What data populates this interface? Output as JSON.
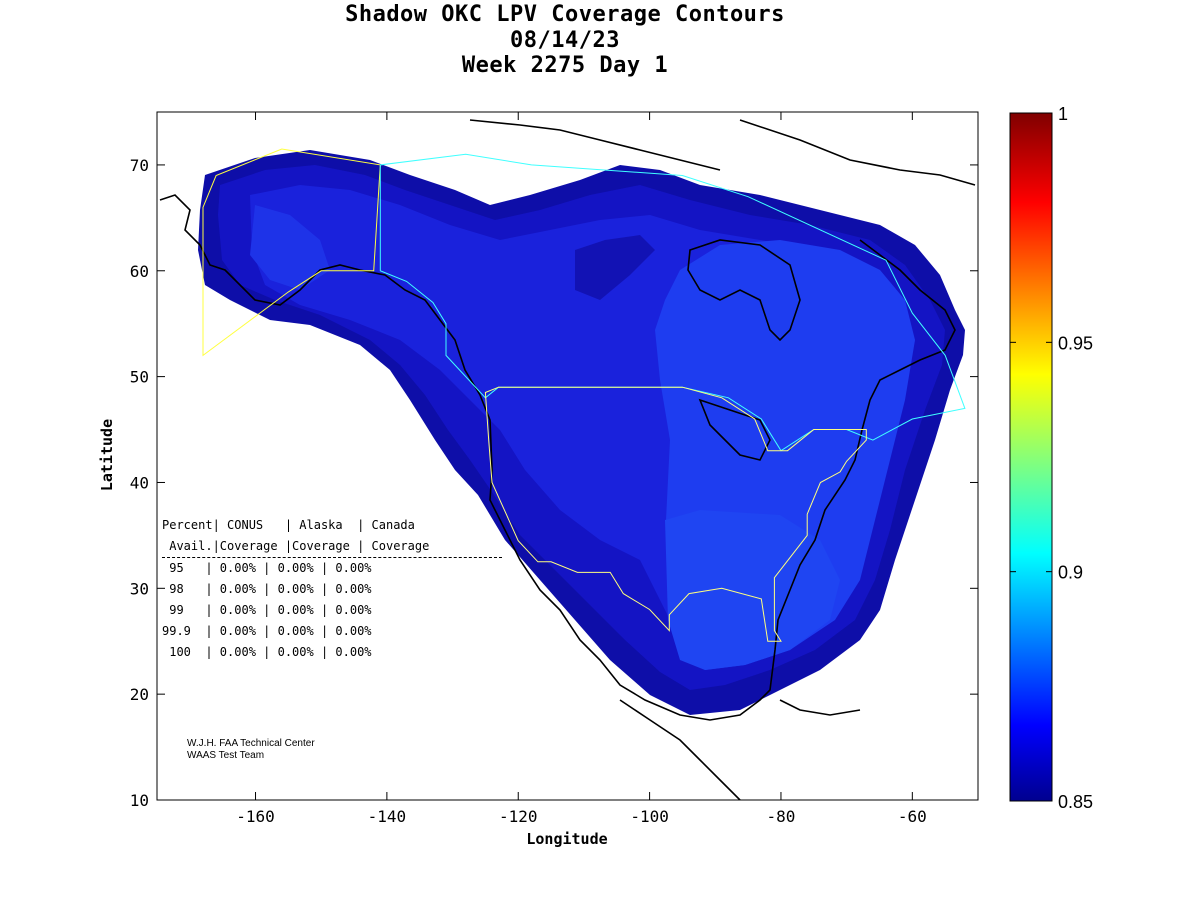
{
  "title": {
    "line1": "Shadow OKC LPV Coverage Contours",
    "line2": "08/14/23",
    "line3": "Week 2275 Day 1"
  },
  "axes": {
    "xlabel": "Longitude",
    "ylabel": "Latitude",
    "x_ticks": [
      -160,
      -140,
      -120,
      -100,
      -80,
      -60
    ],
    "y_ticks": [
      10,
      20,
      30,
      40,
      50,
      60,
      70
    ],
    "x_tick_labels": [
      "-160",
      "-140",
      "-120",
      "-100",
      "-80",
      "-60"
    ],
    "y_tick_labels": [
      "10",
      "20",
      "30",
      "40",
      "50",
      "60",
      "70"
    ],
    "xlim": [
      -175,
      -50
    ],
    "ylim": [
      10,
      75
    ]
  },
  "colorbar": {
    "range": [
      0.85,
      1.0
    ],
    "tick_labels": [
      "1",
      "0.95",
      "0.9",
      "0.85"
    ],
    "tick_values": [
      1.0,
      0.95,
      0.9,
      0.85
    ]
  },
  "stats_table": {
    "header1": "Percent| CONUS   | Alaska  | Canada",
    "header2": " Avail.|Coverage |Coverage | Coverage",
    "rows": [
      {
        "pct": "95",
        "conus": "0.00%",
        "alaska": "0.00%",
        "canada": "0.00%"
      },
      {
        "pct": "98",
        "conus": "0.00%",
        "alaska": "0.00%",
        "canada": "0.00%"
      },
      {
        "pct": "99",
        "conus": "0.00%",
        "alaska": "0.00%",
        "canada": "0.00%"
      },
      {
        "pct": "99.9",
        "conus": "0.00%",
        "alaska": "0.00%",
        "canada": "0.00%"
      },
      {
        "pct": "100",
        "conus": "0.00%",
        "alaska": "0.00%",
        "canada": "0.00%"
      }
    ]
  },
  "credit": {
    "line1": "W.J.H. FAA Technical Center",
    "line2": "WAAS Test Team"
  },
  "colors": {
    "coverage_dark": "#1515c8",
    "coverage_mid": "#1a2ee6",
    "coverage_light": "#1f4ff2",
    "coverage_edge": "#0c0c9a",
    "alaska_boundary": "#ffff40",
    "canada_boundary": "#40ffff",
    "conus_boundary": "#ffff80"
  },
  "region_boundaries": {
    "alaska": [
      [
        -168,
        52
      ],
      [
        -155,
        58
      ],
      [
        -150,
        60
      ],
      [
        -142,
        60
      ],
      [
        -141,
        70
      ],
      [
        -156,
        71.5
      ],
      [
        -166,
        69
      ],
      [
        -168,
        66
      ],
      [
        -168,
        52
      ]
    ],
    "canada": [
      [
        -141,
        70
      ],
      [
        -128,
        71
      ],
      [
        -118,
        70
      ],
      [
        -95,
        69
      ],
      [
        -85,
        67
      ],
      [
        -64,
        61
      ],
      [
        -60,
        56
      ],
      [
        -55,
        52
      ],
      [
        -52,
        47
      ],
      [
        -60,
        46
      ],
      [
        -66,
        44
      ],
      [
        -70,
        45
      ],
      [
        -75,
        45
      ],
      [
        -80,
        43
      ],
      [
        -83,
        46
      ],
      [
        -88,
        48
      ],
      [
        -95,
        49
      ],
      [
        -123,
        49
      ],
      [
        -125,
        48
      ],
      [
        -131,
        52
      ],
      [
        -131,
        55
      ],
      [
        -133,
        57
      ],
      [
        -137,
        59
      ],
      [
        -141,
        60
      ],
      [
        -141,
        70
      ]
    ],
    "conus": [
      [
        -125,
        48.5
      ],
      [
        -123,
        49
      ],
      [
        -95,
        49
      ],
      [
        -89,
        48
      ],
      [
        -84,
        46
      ],
      [
        -82,
        43
      ],
      [
        -79,
        43
      ],
      [
        -75,
        45
      ],
      [
        -70,
        45
      ],
      [
        -67,
        45
      ],
      [
        -67,
        44
      ],
      [
        -70,
        42
      ],
      [
        -71,
        41
      ],
      [
        -74,
        40
      ],
      [
        -76,
        37
      ],
      [
        -76,
        35
      ],
      [
        -81,
        31
      ],
      [
        -81,
        26
      ],
      [
        -80,
        25
      ],
      [
        -82,
        25
      ],
      [
        -83,
        29
      ],
      [
        -89,
        30
      ],
      [
        -94,
        29.5
      ],
      [
        -97,
        27.5
      ],
      [
        -97,
        26
      ],
      [
        -100,
        28
      ],
      [
        -104,
        29.5
      ],
      [
        -106,
        31.5
      ],
      [
        -111,
        31.5
      ],
      [
        -115,
        32.5
      ],
      [
        -117,
        32.5
      ],
      [
        -120,
        34.5
      ],
      [
        -124,
        40
      ],
      [
        -124.5,
        44
      ],
      [
        -125,
        48.5
      ]
    ]
  }
}
